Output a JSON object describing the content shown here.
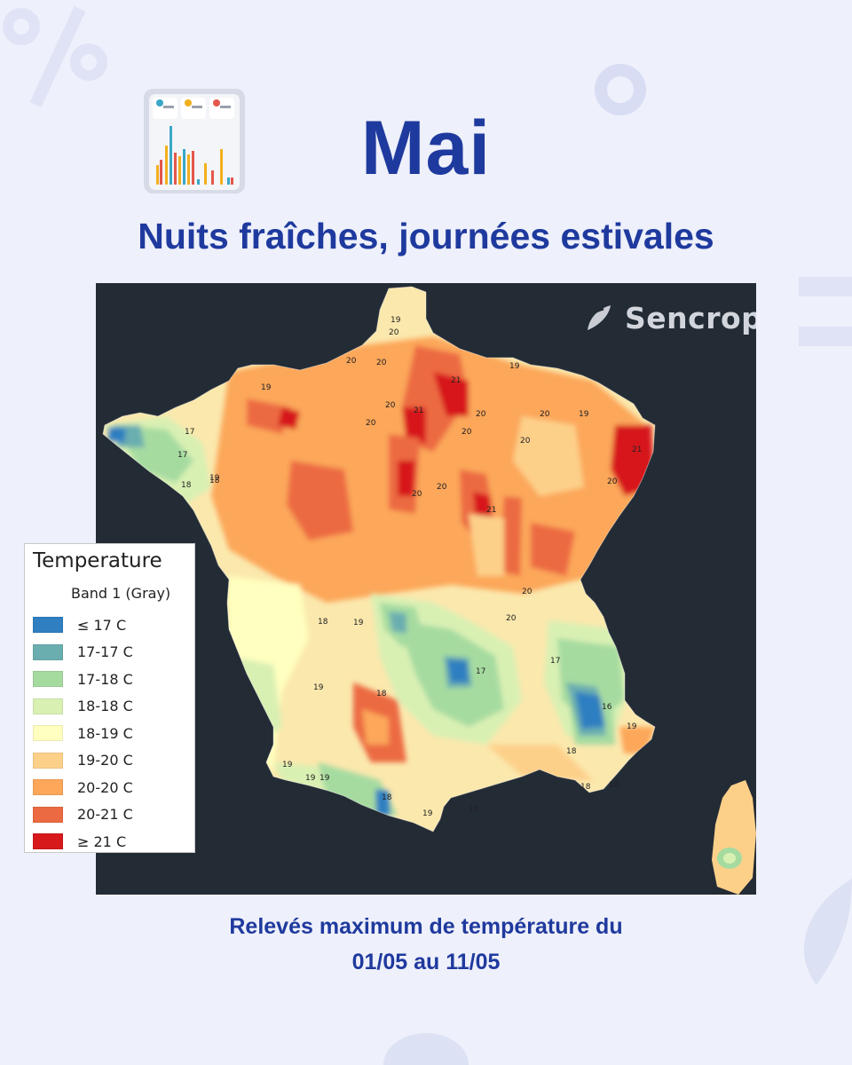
{
  "header": {
    "title": "Mai",
    "subtitle": "Nuits fraîches, journées estivales"
  },
  "map": {
    "brand": "Sencrop",
    "background_color": "#232b35",
    "land_color": "#fbe8ad",
    "contour_labels": [
      "17",
      "17",
      "18",
      "18",
      "18",
      "18",
      "18",
      "19",
      "19",
      "19",
      "19",
      "19",
      "19",
      "19",
      "19",
      "19",
      "19",
      "19",
      "19",
      "20",
      "20",
      "20",
      "20",
      "20",
      "20",
      "20",
      "20",
      "20",
      "20",
      "20",
      "20",
      "20",
      "20",
      "21",
      "21",
      "21",
      "21",
      "17",
      "16",
      "18",
      "17",
      "18",
      "19",
      "18"
    ]
  },
  "legend": {
    "title": "Temperature",
    "band": "Band 1 (Gray)",
    "items": [
      {
        "label": "≤ 17 C",
        "color": "#2f7fc1"
      },
      {
        "label": "17-17 C",
        "color": "#6aaeb0"
      },
      {
        "label": "17-18 C",
        "color": "#a6dba0"
      },
      {
        "label": "18-18 C",
        "color": "#d9f0b3"
      },
      {
        "label": "18-19 C",
        "color": "#ffffbf"
      },
      {
        "label": "19-20 C",
        "color": "#fdd08a"
      },
      {
        "label": "20-20 C",
        "color": "#fca75a"
      },
      {
        "label": "20-21 C",
        "color": "#ec6a42"
      },
      {
        "label": "≥ 21 C",
        "color": "#d7191c"
      }
    ]
  },
  "caption": {
    "line1": "Relevés maximum de température du",
    "line2": "01/05 au 11/05"
  }
}
